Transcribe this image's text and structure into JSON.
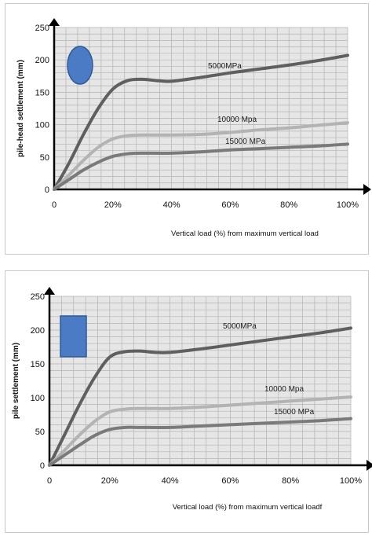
{
  "colors": {
    "grid_bg": "#e6e6e6",
    "grid_line": "#b3b3b3",
    "axis": "#000000",
    "series": [
      "#5f5f5f",
      "#b3b3b3",
      "#7a7a7a"
    ],
    "shape_fill": "#4a7bc4",
    "shape_stroke": "#2f5a95"
  },
  "chart_data": [
    {
      "type": "line",
      "marker": "circle",
      "ylabel": "pile-head settlement (mm)",
      "xlabel": "Vertical load (%) from maximum vertical load",
      "xlim": [
        0,
        100
      ],
      "ylim": [
        0,
        250
      ],
      "xticks": [
        "0",
        "20%",
        "40%",
        "60%",
        "80%",
        "100%"
      ],
      "yticks": [
        "0",
        "50",
        "100",
        "150",
        "200",
        "250"
      ],
      "grid": true,
      "series": [
        {
          "name": "5000MPa",
          "x": [
            0,
            5,
            10,
            15,
            20,
            25,
            30,
            35,
            40,
            50,
            60,
            70,
            80,
            90,
            100
          ],
          "y": [
            0,
            40,
            85,
            125,
            155,
            168,
            170,
            168,
            167,
            173,
            180,
            186,
            192,
            199,
            207
          ]
        },
        {
          "name": "10000 Mpa",
          "x": [
            0,
            5,
            10,
            15,
            20,
            25,
            30,
            40,
            50,
            60,
            70,
            80,
            90,
            100
          ],
          "y": [
            0,
            22,
            45,
            65,
            78,
            83,
            84,
            84,
            85,
            88,
            92,
            95,
            99,
            103
          ]
        },
        {
          "name": "15000 MPa",
          "x": [
            0,
            5,
            10,
            15,
            20,
            25,
            30,
            40,
            50,
            60,
            70,
            80,
            90,
            100
          ],
          "y": [
            0,
            15,
            30,
            42,
            51,
            55,
            56,
            56,
            58,
            61,
            63,
            65,
            67,
            70
          ]
        }
      ]
    },
    {
      "type": "line",
      "marker": "square",
      "ylabel": "pile settlement (mm)",
      "xlabel": "Vertical load (%) from maximum vertical loadf",
      "xlim": [
        0,
        100
      ],
      "ylim": [
        0,
        250
      ],
      "xticks": [
        "0",
        "20%",
        "40%",
        "60%",
        "80%",
        "100%"
      ],
      "yticks": [
        "0",
        "50",
        "100",
        "150",
        "200",
        "250"
      ],
      "grid": true,
      "series": [
        {
          "name": "5000MPa",
          "x": [
            0,
            5,
            10,
            15,
            20,
            25,
            30,
            35,
            40,
            50,
            60,
            70,
            80,
            90,
            100
          ],
          "y": [
            0,
            45,
            90,
            130,
            160,
            168,
            169,
            167,
            167,
            172,
            178,
            184,
            190,
            196,
            203
          ]
        },
        {
          "name": "10000 Mpa",
          "x": [
            0,
            5,
            10,
            15,
            20,
            25,
            30,
            40,
            50,
            60,
            70,
            80,
            90,
            100
          ],
          "y": [
            0,
            22,
            45,
            65,
            79,
            83,
            84,
            84,
            86,
            89,
            92,
            95,
            98,
            101
          ]
        },
        {
          "name": "15000 MPa",
          "x": [
            0,
            5,
            10,
            15,
            20,
            25,
            30,
            40,
            50,
            60,
            70,
            80,
            90,
            100
          ],
          "y": [
            0,
            15,
            30,
            44,
            53,
            56,
            56,
            56,
            58,
            60,
            62,
            64,
            66,
            69
          ]
        }
      ]
    }
  ]
}
